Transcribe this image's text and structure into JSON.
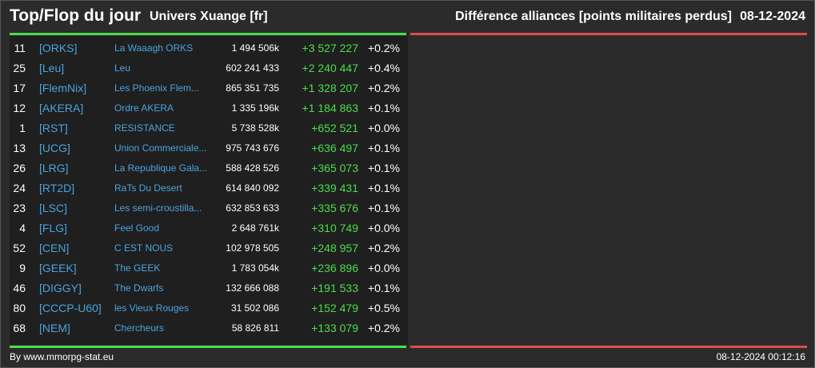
{
  "header": {
    "title": "Top/Flop du jour",
    "universe": "Univers Xuange [fr]",
    "subtitle": "Différence alliances [points militaires perdus]",
    "date": "08-12-2024"
  },
  "colors": {
    "positive": "#4cdc4c",
    "negative": "#dc4c4c",
    "link": "#4aa3df",
    "panel": "#1f1f1f",
    "background": "#2b2b2b"
  },
  "rows": [
    {
      "rank": "11",
      "tag": "[ORKS]",
      "name": "La Waaagh ORKS",
      "points": "1 494 506k",
      "diff": "+3 527 227",
      "pct": "+0.2%"
    },
    {
      "rank": "25",
      "tag": "[Leu]",
      "name": "Leu",
      "points": "602 241 433",
      "diff": "+2 240 447",
      "pct": "+0.4%"
    },
    {
      "rank": "17",
      "tag": "[FlemNix]",
      "name": "Les Phoenix Flem...",
      "points": "865 351 735",
      "diff": "+1 328 207",
      "pct": "+0.2%"
    },
    {
      "rank": "12",
      "tag": "[AKERA]",
      "name": "Ordre AKERA",
      "points": "1 335 196k",
      "diff": "+1 184 863",
      "pct": "+0.1%"
    },
    {
      "rank": "1",
      "tag": "[RST]",
      "name": "RESISTANCE",
      "points": "5 738 528k",
      "diff": "+652 521",
      "pct": "+0.0%"
    },
    {
      "rank": "13",
      "tag": "[UCG]",
      "name": "Union Commerciale...",
      "points": "975 743 676",
      "diff": "+636 497",
      "pct": "+0.1%"
    },
    {
      "rank": "26",
      "tag": "[LRG]",
      "name": "La Republique Gala...",
      "points": "588 428 526",
      "diff": "+365 073",
      "pct": "+0.1%"
    },
    {
      "rank": "24",
      "tag": "[RT2D]",
      "name": "RaTs Du Desert",
      "points": "614 840 092",
      "diff": "+339 431",
      "pct": "+0.1%"
    },
    {
      "rank": "23",
      "tag": "[LSC]",
      "name": "Les semi-croustilla...",
      "points": "632 853 633",
      "diff": "+335 676",
      "pct": "+0.1%"
    },
    {
      "rank": "4",
      "tag": "[FLG]",
      "name": "Feel Good",
      "points": "2 648 761k",
      "diff": "+310 749",
      "pct": "+0.0%"
    },
    {
      "rank": "52",
      "tag": "[CEN]",
      "name": "C EST NOUS",
      "points": "102 978 505",
      "diff": "+248 957",
      "pct": "+0.2%"
    },
    {
      "rank": "9",
      "tag": "[GEEK]",
      "name": "The GEEK",
      "points": "1 783 054k",
      "diff": "+236 896",
      "pct": "+0.0%"
    },
    {
      "rank": "46",
      "tag": "[DIGGY]",
      "name": "The Dwarfs",
      "points": "132 666 088",
      "diff": "+191 533",
      "pct": "+0.1%"
    },
    {
      "rank": "80",
      "tag": "[CCCP-U60]",
      "name": "les Vieux Rouges",
      "points": "31 502 086",
      "diff": "+152 479",
      "pct": "+0.5%"
    },
    {
      "rank": "68",
      "tag": "[NEM]",
      "name": "Chercheurs",
      "points": "58 826 811",
      "diff": "+133 079",
      "pct": "+0.2%"
    }
  ],
  "footer": {
    "credit": "By www.mmorpg-stat.eu",
    "timestamp": "08-12-2024 00:12:16"
  }
}
